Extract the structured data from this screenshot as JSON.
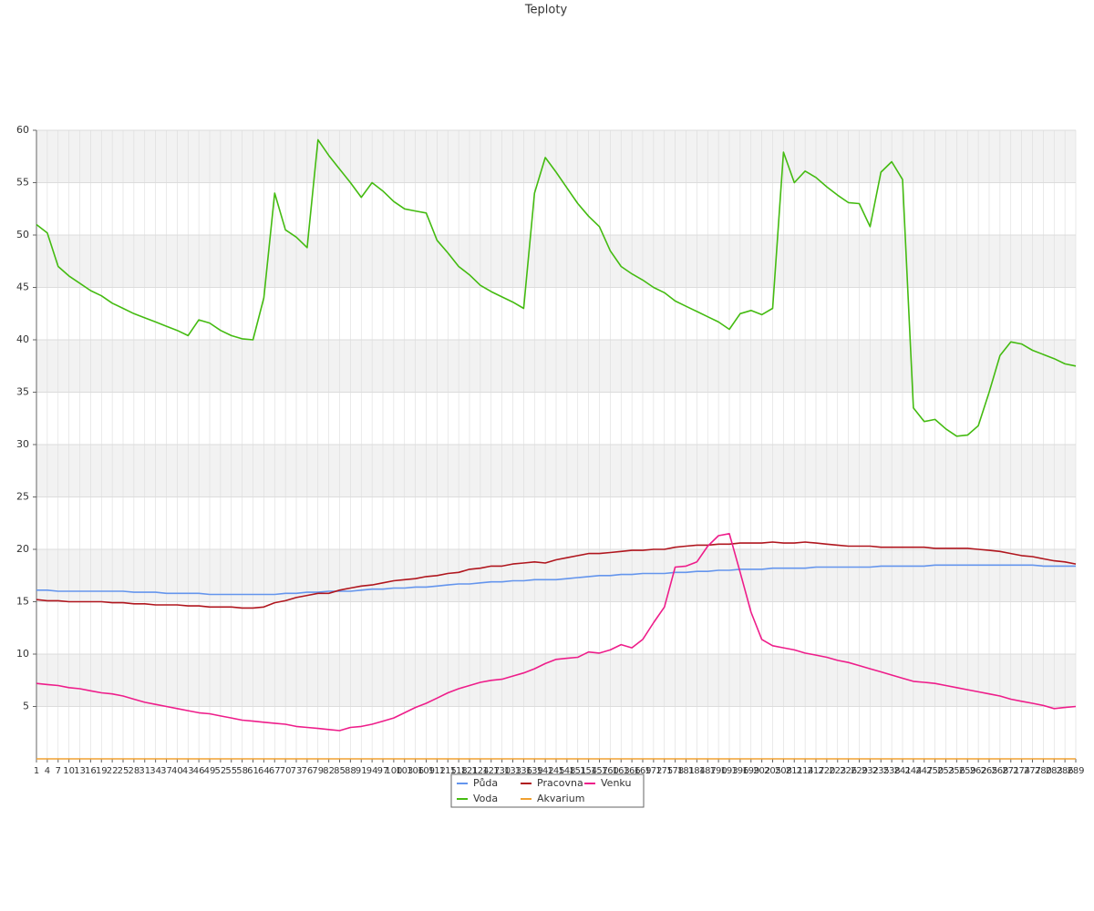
{
  "chart_data": {
    "type": "line",
    "title": "Teploty",
    "x": [
      1,
      4,
      7,
      10,
      13,
      16,
      19,
      22,
      25,
      28,
      31,
      34,
      37,
      40,
      43,
      46,
      49,
      52,
      55,
      58,
      61,
      64,
      67,
      70,
      73,
      76,
      79,
      82,
      85,
      88,
      91,
      94,
      97,
      100,
      103,
      106,
      109,
      112,
      115,
      118,
      121,
      124,
      127,
      130,
      133,
      136,
      139,
      142,
      145,
      148,
      151,
      154,
      157,
      160,
      163,
      166,
      169,
      172,
      175,
      178,
      181,
      184,
      187,
      190,
      193,
      196,
      199,
      202,
      205,
      208,
      211,
      214,
      217,
      220,
      223,
      226,
      229,
      232,
      235,
      238,
      241,
      244,
      247,
      250,
      253,
      256,
      259,
      262,
      265,
      268,
      271,
      274,
      277,
      280,
      283,
      286,
      289
    ],
    "xlim": [
      1,
      289
    ],
    "ylim": [
      0,
      60
    ],
    "yticks": [
      5,
      10,
      15,
      20,
      25,
      30,
      35,
      40,
      45,
      50,
      55,
      60
    ],
    "grid": true,
    "series": [
      {
        "name": "Půda",
        "color": "#6495ed",
        "values": [
          16.1,
          16.1,
          16,
          16,
          16,
          16,
          16,
          16,
          16,
          15.9,
          15.9,
          15.9,
          15.8,
          15.8,
          15.8,
          15.8,
          15.7,
          15.7,
          15.7,
          15.7,
          15.7,
          15.7,
          15.7,
          15.8,
          15.8,
          15.9,
          15.9,
          16,
          16,
          16,
          16.1,
          16.2,
          16.2,
          16.3,
          16.3,
          16.4,
          16.4,
          16.5,
          16.6,
          16.7,
          16.7,
          16.8,
          16.9,
          16.9,
          17,
          17,
          17.1,
          17.1,
          17.1,
          17.2,
          17.3,
          17.4,
          17.5,
          17.5,
          17.6,
          17.6,
          17.7,
          17.7,
          17.7,
          17.8,
          17.8,
          17.9,
          17.9,
          18,
          18,
          18.1,
          18.1,
          18.1,
          18.2,
          18.2,
          18.2,
          18.2,
          18.3,
          18.3,
          18.3,
          18.3,
          18.3,
          18.3,
          18.4,
          18.4,
          18.4,
          18.4,
          18.4,
          18.5,
          18.5,
          18.5,
          18.5,
          18.5,
          18.5,
          18.5,
          18.5,
          18.5,
          18.5,
          18.4,
          18.4,
          18.4,
          18.4
        ]
      },
      {
        "name": "Voda",
        "color": "#44bb11",
        "values": [
          51,
          50.2,
          47,
          46.1,
          45.4,
          44.7,
          44.2,
          43.5,
          43,
          42.5,
          42.1,
          41.7,
          41.3,
          40.9,
          40.4,
          41.9,
          41.6,
          40.9,
          40.4,
          40.1,
          40,
          44,
          54,
          50.5,
          49.8,
          48.8,
          59.1,
          57.6,
          56.3,
          55,
          53.6,
          55,
          54.2,
          53.2,
          52.5,
          52.3,
          52.1,
          49.5,
          48.3,
          47,
          46.2,
          45.2,
          44.6,
          44.1,
          43.6,
          43,
          54,
          57.4,
          56,
          54.5,
          53,
          51.8,
          50.8,
          48.5,
          47,
          46.3,
          45.7,
          45,
          44.5,
          43.7,
          43.2,
          42.7,
          42.2,
          41.7,
          41,
          42.5,
          42.8,
          42.4,
          43,
          57.9,
          55,
          56.1,
          55.5,
          54.6,
          53.8,
          53.1,
          53,
          50.8,
          56,
          57,
          55.3,
          33.5,
          32.2,
          32.4,
          31.5,
          30.8,
          30.9,
          31.8,
          35,
          38.5,
          39.8,
          39.6,
          39,
          38.6,
          38.2,
          37.7,
          37.5
        ]
      },
      {
        "name": "Pracovna",
        "color": "#b0161e",
        "values": [
          15.2,
          15.1,
          15.1,
          15,
          15,
          15,
          15,
          14.9,
          14.9,
          14.8,
          14.8,
          14.7,
          14.7,
          14.7,
          14.6,
          14.6,
          14.5,
          14.5,
          14.5,
          14.4,
          14.4,
          14.5,
          14.9,
          15.1,
          15.4,
          15.6,
          15.8,
          15.8,
          16.1,
          16.3,
          16.5,
          16.6,
          16.8,
          17,
          17.1,
          17.2,
          17.4,
          17.5,
          17.7,
          17.8,
          18.1,
          18.2,
          18.4,
          18.4,
          18.6,
          18.7,
          18.8,
          18.7,
          19,
          19.2,
          19.4,
          19.6,
          19.6,
          19.7,
          19.8,
          19.9,
          19.9,
          20,
          20,
          20.2,
          20.3,
          20.4,
          20.4,
          20.5,
          20.5,
          20.6,
          20.6,
          20.6,
          20.7,
          20.6,
          20.6,
          20.7,
          20.6,
          20.5,
          20.4,
          20.3,
          20.3,
          20.3,
          20.2,
          20.2,
          20.2,
          20.2,
          20.2,
          20.1,
          20.1,
          20.1,
          20.1,
          20,
          19.9,
          19.8,
          19.6,
          19.4,
          19.3,
          19.1,
          18.9,
          18.8,
          18.6
        ]
      },
      {
        "name": "Akvarium",
        "color": "#f0a030",
        "values": [
          0,
          0,
          0,
          0,
          0,
          0,
          0,
          0,
          0,
          0,
          0,
          0,
          0,
          0,
          0,
          0,
          0,
          0,
          0,
          0,
          0,
          0,
          0,
          0,
          0,
          0,
          0,
          0,
          0,
          0,
          0,
          0,
          0,
          0,
          0,
          0,
          0,
          0,
          0,
          0,
          0,
          0,
          0,
          0,
          0,
          0,
          0,
          0,
          0,
          0,
          0,
          0,
          0,
          0,
          0,
          0,
          0,
          0,
          0,
          0,
          0,
          0,
          0,
          0,
          0,
          0,
          0,
          0,
          0,
          0,
          0,
          0,
          0,
          0,
          0,
          0,
          0,
          0,
          0,
          0,
          0,
          0,
          0,
          0,
          0,
          0,
          0,
          0,
          0,
          0,
          0,
          0,
          0,
          0,
          0,
          0,
          0
        ]
      },
      {
        "name": "Venku",
        "color": "#ee1d8a",
        "values": [
          7.2,
          7.1,
          7,
          6.8,
          6.7,
          6.5,
          6.3,
          6.2,
          6,
          5.7,
          5.4,
          5.2,
          5,
          4.8,
          4.6,
          4.4,
          4.3,
          4.1,
          3.9,
          3.7,
          3.6,
          3.5,
          3.4,
          3.3,
          3.1,
          3,
          2.9,
          2.8,
          2.7,
          3,
          3.1,
          3.3,
          3.6,
          3.9,
          4.4,
          4.9,
          5.3,
          5.8,
          6.3,
          6.7,
          7,
          7.3,
          7.5,
          7.6,
          7.9,
          8.2,
          8.6,
          9.1,
          9.5,
          9.6,
          9.7,
          10.2,
          10.1,
          10.4,
          10.9,
          10.6,
          11.4,
          13,
          14.5,
          18.3,
          18.4,
          18.8,
          20.3,
          21.3,
          21.5,
          17.8,
          14,
          11.4,
          10.8,
          10.6,
          10.4,
          10.1,
          9.9,
          9.7,
          9.4,
          9.2,
          8.9,
          8.6,
          8.3,
          8,
          7.7,
          7.4,
          7.3,
          7.2,
          7,
          6.8,
          6.6,
          6.4,
          6.2,
          6,
          5.7,
          5.5,
          5.3,
          5.1,
          4.8,
          4.9,
          5
        ]
      }
    ]
  }
}
